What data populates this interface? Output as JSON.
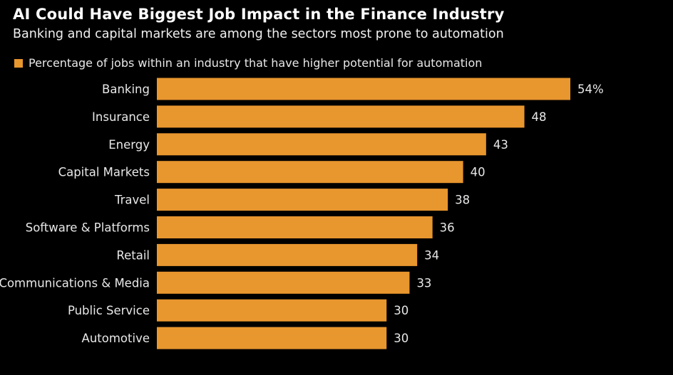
{
  "chart_data": {
    "type": "bar",
    "orientation": "horizontal",
    "title": "AI Could Have Biggest Job Impact in the Finance Industry",
    "subtitle": "Banking and capital markets are among the sectors most prone to automation",
    "legend": "Percentage of jobs within an industry that have higher potential for automation",
    "legend_placement": "top-left",
    "categories": [
      "Banking",
      "Insurance",
      "Energy",
      "Capital Markets",
      "Travel",
      "Software & Platforms",
      "Retail",
      "Communications & Media",
      "Public Service",
      "Automotive"
    ],
    "series": [
      {
        "name": "Percentage of jobs within an industry that have higher potential for automation",
        "values": [
          54,
          48,
          43,
          40,
          38,
          36,
          34,
          33,
          30,
          30
        ]
      }
    ],
    "value_labels": [
      "54%",
      "48",
      "43",
      "40",
      "38",
      "36",
      "34",
      "33",
      "30",
      "30"
    ],
    "xlim": [
      0,
      54
    ],
    "grid": false,
    "colors": {
      "bar": "#E8962E",
      "background": "#000000",
      "text": "#FFFFFF"
    }
  }
}
